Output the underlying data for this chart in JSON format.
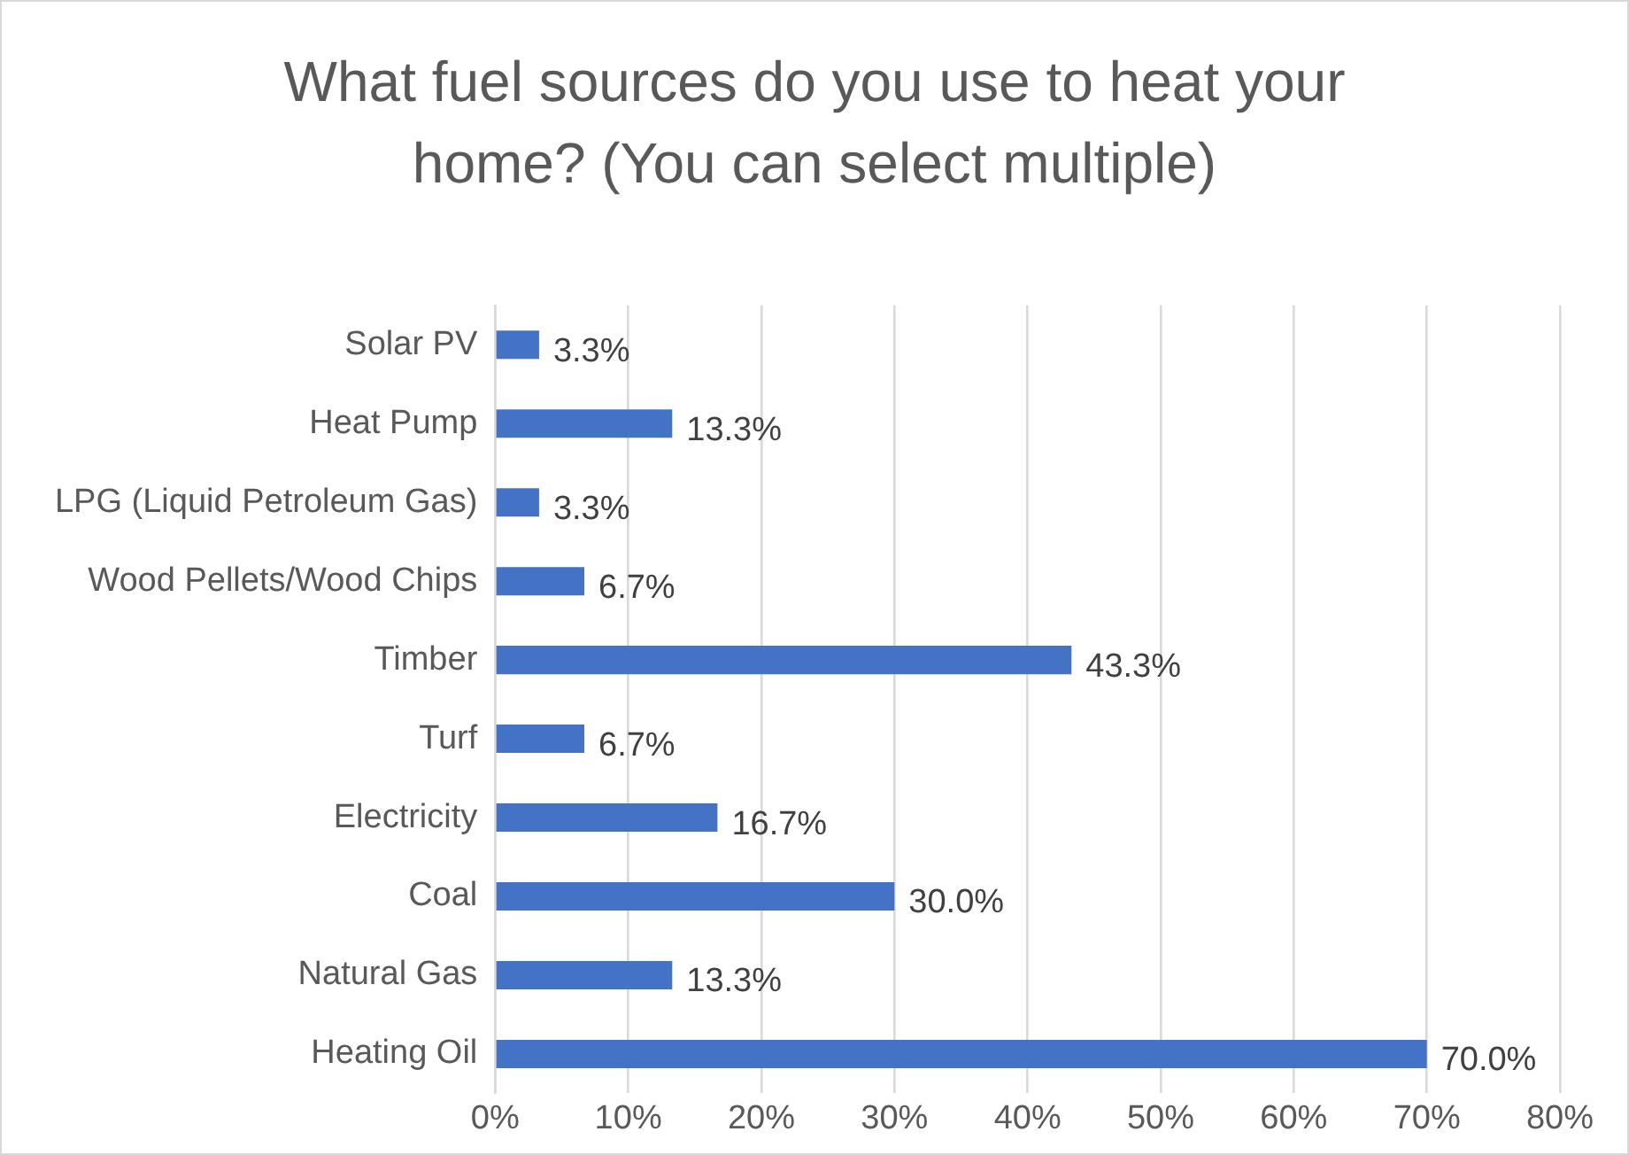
{
  "chart_data": {
    "type": "bar",
    "orientation": "horizontal",
    "title": "What fuel sources do you use to heat your home? (You can select multiple)",
    "categories": [
      "Solar PV",
      "Heat Pump",
      "LPG (Liquid Petroleum Gas)",
      "Wood Pellets/Wood Chips",
      "Timber",
      "Turf",
      "Electricity",
      "Coal",
      "Natural Gas",
      "Heating Oil"
    ],
    "values": [
      3.3,
      13.3,
      3.3,
      6.7,
      43.3,
      6.7,
      16.7,
      30.0,
      13.3,
      70.0
    ],
    "value_labels": [
      "3.3%",
      "13.3%",
      "3.3%",
      "6.7%",
      "43.3%",
      "6.7%",
      "16.7%",
      "30.0%",
      "13.3%",
      "70.0%"
    ],
    "color": "#4472c4",
    "xlim": [
      0,
      80
    ],
    "xticks": [
      {
        "value": 0,
        "label": "0%"
      },
      {
        "value": 10,
        "label": "10%"
      },
      {
        "value": 20,
        "label": "20%"
      },
      {
        "value": 30,
        "label": "30%"
      },
      {
        "value": 40,
        "label": "40%"
      },
      {
        "value": 50,
        "label": "50%"
      },
      {
        "value": 60,
        "label": "60%"
      },
      {
        "value": 70,
        "label": "70%"
      },
      {
        "value": 80,
        "label": "80%"
      }
    ],
    "grid": "x"
  }
}
